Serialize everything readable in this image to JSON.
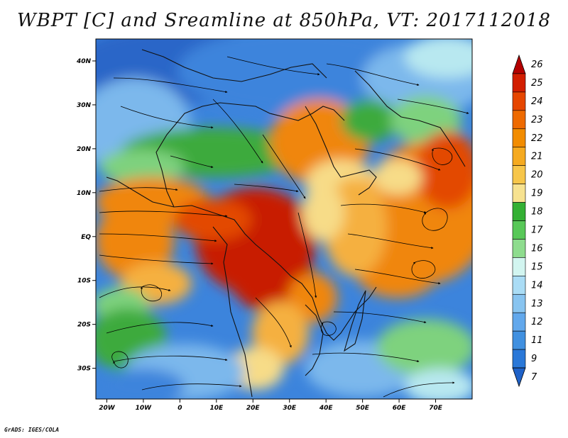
{
  "title": "WBPT [C] and Sreamline at 850hPa, VT: 2017112018",
  "credit": "GrADS: IGES/COLA",
  "map": {
    "lon_range": [
      -23,
      80
    ],
    "lat_range": [
      -37,
      45
    ],
    "lon_ticks": [
      {
        "value": -20,
        "label": "20W"
      },
      {
        "value": -10,
        "label": "10W"
      },
      {
        "value": 0,
        "label": "0"
      },
      {
        "value": 10,
        "label": "10E"
      },
      {
        "value": 20,
        "label": "20E"
      },
      {
        "value": 30,
        "label": "30E"
      },
      {
        "value": 40,
        "label": "40E"
      },
      {
        "value": 50,
        "label": "50E"
      },
      {
        "value": 60,
        "label": "60E"
      },
      {
        "value": 70,
        "label": "70E"
      }
    ],
    "lat_ticks": [
      {
        "value": 40,
        "label": "40N"
      },
      {
        "value": 30,
        "label": "30N"
      },
      {
        "value": 20,
        "label": "20N"
      },
      {
        "value": 10,
        "label": "10N"
      },
      {
        "value": 0,
        "label": "EQ"
      },
      {
        "value": -10,
        "label": "10S"
      },
      {
        "value": -20,
        "label": "20S"
      },
      {
        "value": -30,
        "label": "30S"
      }
    ]
  },
  "colorbar": {
    "labels": [
      "26",
      "25",
      "24",
      "23",
      "22",
      "21",
      "20",
      "19",
      "18",
      "17",
      "16",
      "15",
      "14",
      "13",
      "12",
      "11",
      "9",
      "7"
    ],
    "colors": [
      "#b40000",
      "#d21e00",
      "#e64600",
      "#ee6a00",
      "#f28c00",
      "#f5aa20",
      "#f7c64a",
      "#f7e290",
      "#34b034",
      "#58c858",
      "#8edc8e",
      "#d2f5f0",
      "#aadcf5",
      "#88c4f0",
      "#62a8ec",
      "#4090e0",
      "#2a78d8",
      "#1f62c8"
    ]
  },
  "field_colors": {
    "very_hot": "#c81e00",
    "hot": "#e34a00",
    "warm": "#f0860c",
    "mild": "#f5b040",
    "light": "#f7dc88",
    "green": "#3caa3c",
    "green_light": "#7ed27e",
    "cyan": "#b8e8f0",
    "blue_light": "#7cb8ec",
    "blue": "#3c84dc",
    "blue_dark": "#2a66c8"
  }
}
